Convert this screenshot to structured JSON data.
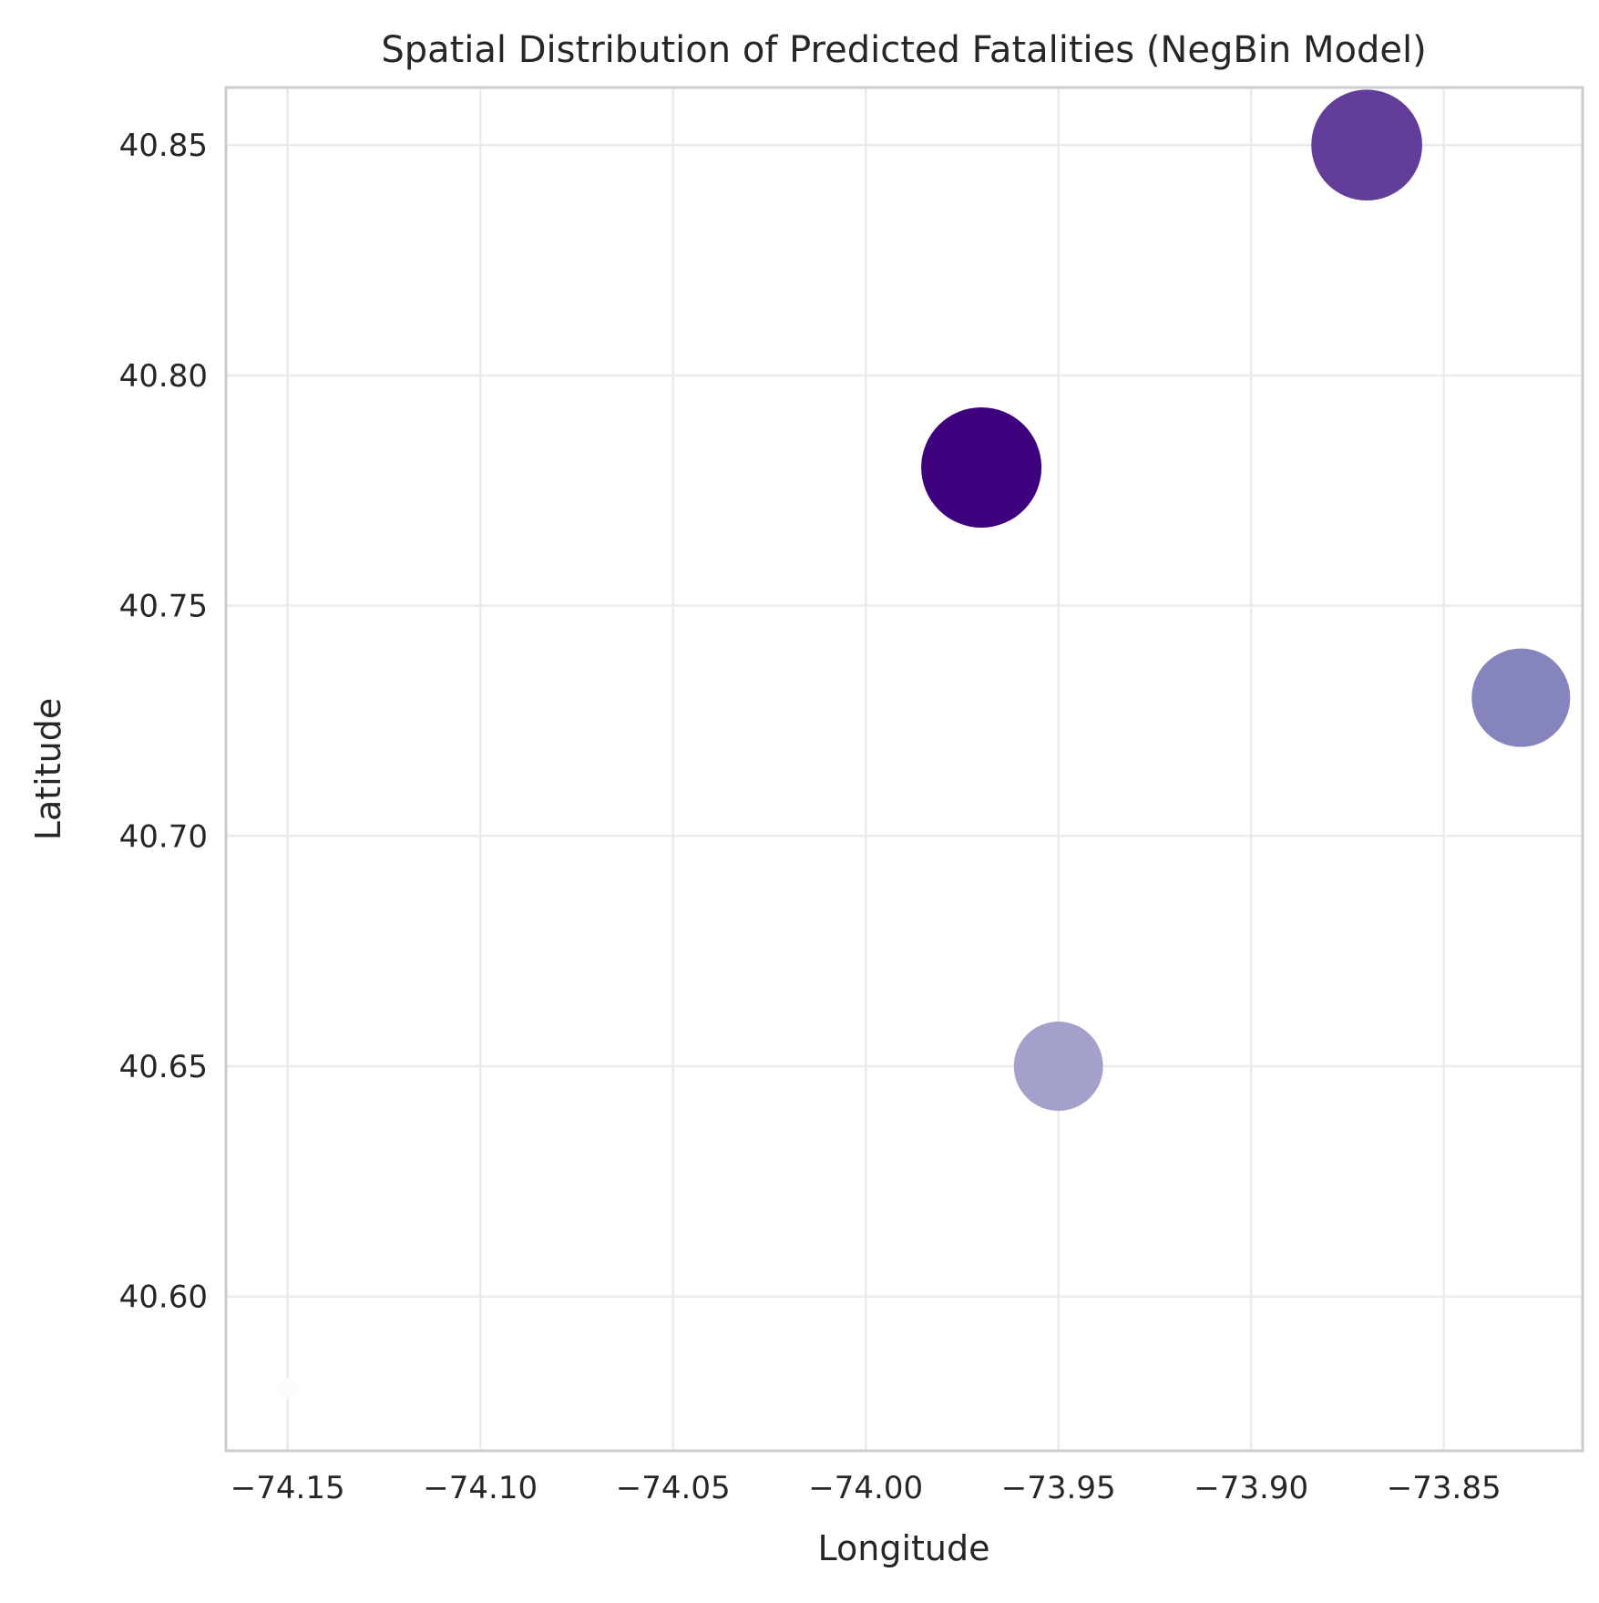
{
  "chart_data": {
    "type": "scatter",
    "title": "Spatial Distribution of Predicted Fatalities (NegBin Model)",
    "xlabel": "Longitude",
    "ylabel": "Latitude",
    "xlim": [
      -74.166,
      -73.814
    ],
    "ylim": [
      40.5665,
      40.8625
    ],
    "xticks": [
      -74.15,
      -74.1,
      -74.05,
      -74.0,
      -73.95,
      -73.9,
      -73.85
    ],
    "xtick_labels": [
      "−74.15",
      "−74.10",
      "−74.05",
      "−74.00",
      "−73.95",
      "−73.90",
      "−73.85"
    ],
    "yticks": [
      40.6,
      40.65,
      40.7,
      40.75,
      40.8,
      40.85
    ],
    "ytick_labels": [
      "40.60",
      "40.65",
      "40.70",
      "40.75",
      "40.80",
      "40.85"
    ],
    "grid": true,
    "legend": "none",
    "points": [
      {
        "x": -73.87,
        "y": 40.85,
        "relative_size": 0.85,
        "color": "#623e9a"
      },
      {
        "x": -73.97,
        "y": 40.78,
        "relative_size": 1.0,
        "color": "#3f007d"
      },
      {
        "x": -73.83,
        "y": 40.73,
        "relative_size": 0.67,
        "color": "#8584bd"
      },
      {
        "x": -73.95,
        "y": 40.65,
        "relative_size": 0.55,
        "color": "#a3a0cb"
      },
      {
        "x": -74.15,
        "y": 40.58,
        "relative_size": 0.03,
        "color": "#fbfafd"
      }
    ]
  }
}
